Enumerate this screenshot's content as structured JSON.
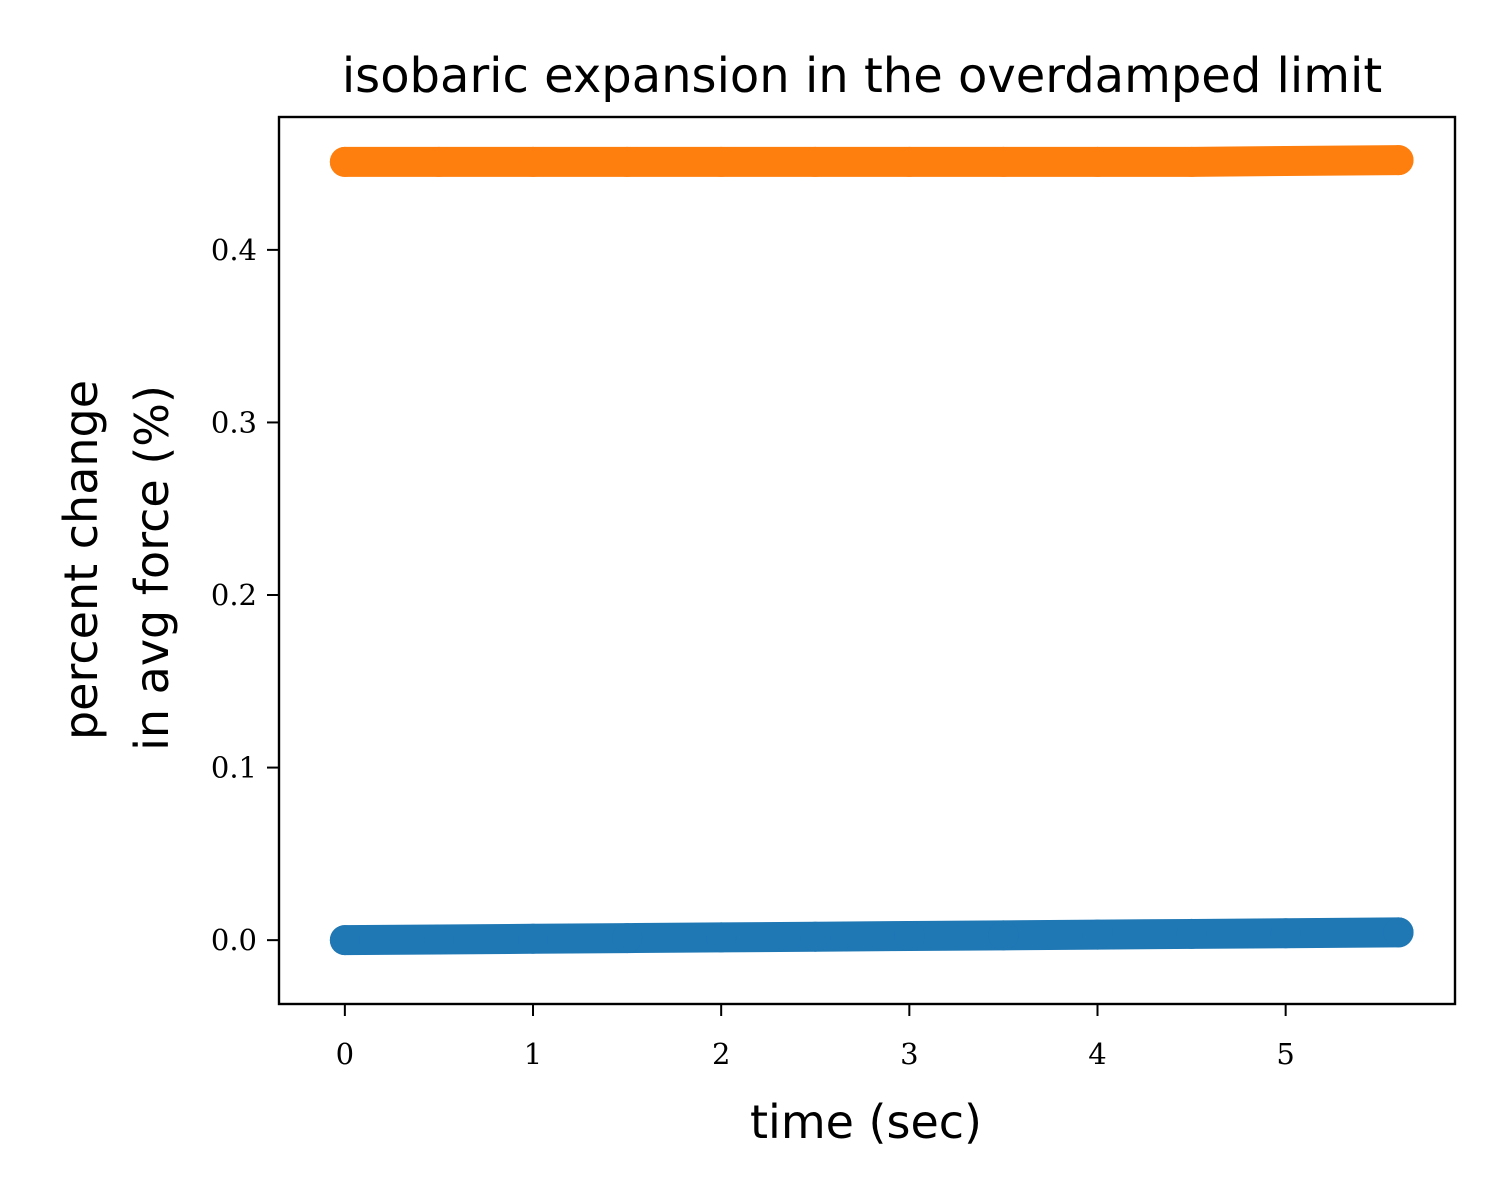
{
  "chart_data": {
    "type": "scatter",
    "title": "isobaric expansion in the overdamped limit",
    "xlabel": "time (sec)",
    "ylabel_lines": [
      "percent change",
      "in avg force (%)"
    ],
    "xlim": [
      -0.35,
      5.9
    ],
    "ylim": [
      -0.037,
      0.477
    ],
    "xticks": [
      0,
      1,
      2,
      3,
      4,
      5
    ],
    "xtick_labels": [
      "0",
      "1",
      "2",
      "3",
      "4",
      "5"
    ],
    "yticks": [
      0.0,
      0.1,
      0.2,
      0.3,
      0.4
    ],
    "ytick_labels": [
      "0.0",
      "0.1",
      "0.2",
      "0.3",
      "0.4"
    ],
    "grid": false,
    "series": [
      {
        "color": "#1f77b4",
        "x": [
          0,
          0.5,
          1.0,
          1.5,
          2.0,
          2.5,
          3.0,
          3.5,
          4.0,
          4.5,
          5.0,
          5.6
        ],
        "y": [
          0.0,
          0.0004,
          0.0008,
          0.0012,
          0.0016,
          0.002,
          0.0024,
          0.0028,
          0.0032,
          0.0036,
          0.004,
          0.0045
        ]
      },
      {
        "color": "#ff7f0e",
        "x": [
          0,
          0.5,
          1.0,
          1.5,
          2.0,
          2.5,
          3.0,
          3.5,
          4.0,
          4.5,
          5.0,
          5.6
        ],
        "y": [
          0.451,
          0.451,
          0.451,
          0.451,
          0.451,
          0.451,
          0.451,
          0.451,
          0.451,
          0.451,
          0.4515,
          0.452
        ]
      }
    ]
  }
}
